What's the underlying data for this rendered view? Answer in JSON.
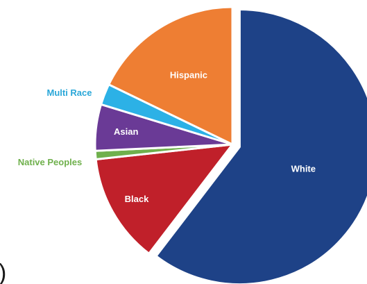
{
  "chart_data": {
    "type": "pie",
    "title": "",
    "slices": [
      {
        "label": "White",
        "value": 61.0,
        "color": "#1e4287",
        "label_color": "#ffffff"
      },
      {
        "label": "Black",
        "value": 13.0,
        "color": "#c0202a",
        "label_color": "#ffffff"
      },
      {
        "label": "Native Peoples",
        "value": 1.0,
        "color": "#6fb04c",
        "label_color": "#6fb04c"
      },
      {
        "label": "Asian",
        "value": 5.5,
        "color": "#6a3a96",
        "label_color": "#ffffff"
      },
      {
        "label": "Multi Race",
        "value": 2.5,
        "color": "#2cb1e6",
        "label_color": "#2aa7d8"
      },
      {
        "label": "Hispanic",
        "value": 18.0,
        "color": "#ee7e33",
        "label_color": "#ffffff"
      }
    ],
    "exploded": [
      "White"
    ],
    "legend": "none"
  }
}
